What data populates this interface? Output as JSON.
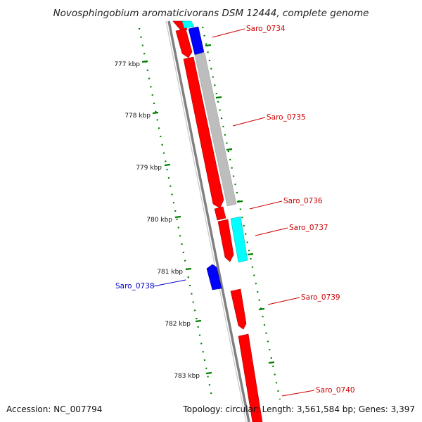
{
  "title": "Novosphingobium aromaticivorans DSM 12444, complete genome",
  "footer": {
    "accession": "Accession: NC_007794",
    "summary": "Topology: circular; Length: 3,561,584 bp; Genes: 3,397"
  },
  "colors": {
    "forward_cds": "#ff0000",
    "reverse_cds": "#0000ff",
    "cyan_feature": "#00ffff",
    "grey_feature": "#bdbdbd",
    "backbone": "#808080",
    "ticks": "#008000",
    "label_red": "#cc0000",
    "label_blue": "#0000cc"
  },
  "ticks": [
    {
      "label": "777 kbp"
    },
    {
      "label": "778 kbp"
    },
    {
      "label": "779 kbp"
    },
    {
      "label": "780 kbp"
    },
    {
      "label": "781 kbp"
    },
    {
      "label": "782 kbp"
    },
    {
      "label": "783 kbp"
    }
  ],
  "genes": [
    {
      "label": "Saro_0734",
      "strand": "forward"
    },
    {
      "label": "Saro_0735",
      "strand": "forward"
    },
    {
      "label": "Saro_0736",
      "strand": "forward"
    },
    {
      "label": "Saro_0737",
      "strand": "forward"
    },
    {
      "label": "Saro_0738",
      "strand": "reverse"
    },
    {
      "label": "Saro_0739",
      "strand": "forward"
    },
    {
      "label": "Saro_0740",
      "strand": "forward"
    }
  ]
}
